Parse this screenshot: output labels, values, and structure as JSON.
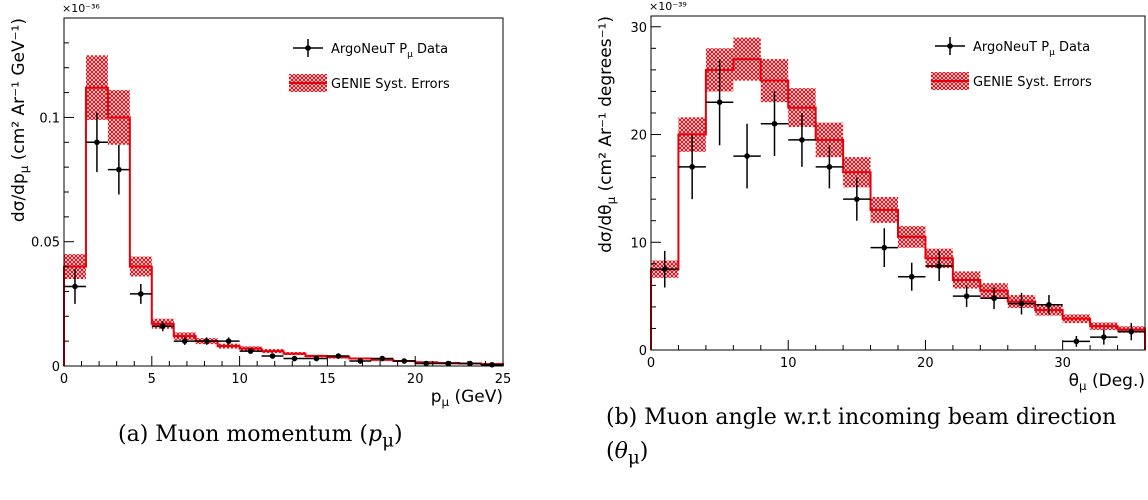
{
  "chart_data": [
    {
      "type": "histogram",
      "panel": "a",
      "xlabel": "p",
      "xlabel_sub": "μ",
      "xlabel_unit": " (GeV)",
      "ylabel": "dσ/dp",
      "ylabel_sub": "μ",
      "ylabel_unit": " (cm² Ar⁻¹ GeV⁻¹)",
      "y_multiplier": "×10⁻³⁶",
      "xlim": [
        0,
        25
      ],
      "ylim": [
        0,
        0.14
      ],
      "xticks": [
        0,
        5,
        10,
        15,
        20,
        25
      ],
      "yticks": [
        0,
        0.05,
        0.1
      ],
      "ytick_labels": [
        "0",
        "0.05",
        "0.1"
      ],
      "legend_position": "top-right",
      "legend": {
        "data_label": "ArgoNeuT P",
        "data_label_sub": "μ",
        "data_label_tail": " Data",
        "mc_label": "GENIE Syst. Errors"
      },
      "bin_edges": [
        0,
        1.25,
        2.5,
        3.75,
        5,
        6.25,
        7.5,
        8.75,
        10,
        11.25,
        12.5,
        13.75,
        15,
        16.25,
        17.5,
        18.75,
        20,
        21.25,
        22.5,
        23.75,
        25
      ],
      "mc_values": [
        0.04,
        0.112,
        0.1,
        0.04,
        0.017,
        0.012,
        0.01,
        0.008,
        0.007,
        0.006,
        0.005,
        0.004,
        0.0035,
        0.003,
        0.0025,
        0.002,
        0.0015,
        0.0012,
        0.001,
        0.0008
      ],
      "mc_errors": [
        0.005,
        0.013,
        0.011,
        0.004,
        0.002,
        0.0015,
        0.0012,
        0.001,
        0.0009,
        0.0008,
        0.0006,
        0.0005,
        0.0005,
        0.0004,
        0.0004,
        0.0003,
        0.0003,
        0.0002,
        0.0002,
        0.0002
      ],
      "data_x": [
        0.625,
        1.875,
        3.125,
        4.375,
        5.625,
        6.875,
        8.125,
        9.375,
        10.625,
        11.875,
        13.125,
        14.375,
        15.625,
        16.875,
        18.125,
        19.375,
        20.625,
        21.875,
        23.125,
        24.375
      ],
      "data_y": [
        0.032,
        0.09,
        0.079,
        0.029,
        0.016,
        0.01,
        0.01,
        0.01,
        0.006,
        0.004,
        0.003,
        0.003,
        0.004,
        0.002,
        0.003,
        0.002,
        0.001,
        0.001,
        0.001,
        0.0005
      ],
      "data_yerr": [
        0.007,
        0.012,
        0.01,
        0.004,
        0.002,
        0.0015,
        0.0015,
        0.0015,
        0.001,
        0.001,
        0.001,
        0.001,
        0.001,
        0.0008,
        0.0008,
        0.0007,
        0.0006,
        0.0006,
        0.0005,
        0.0004
      ],
      "data_xerr": 0.625,
      "colors": {
        "mc": "#e8000b",
        "data": "#000000"
      }
    },
    {
      "type": "histogram",
      "panel": "b",
      "xlabel": "θ",
      "xlabel_sub": "μ",
      "xlabel_unit": " (Deg.)",
      "ylabel": "dσ/dθ",
      "ylabel_sub": "μ",
      "ylabel_unit": " (cm² Ar⁻¹ degrees⁻¹)",
      "y_multiplier": "×10⁻³⁹",
      "xlim": [
        0,
        36
      ],
      "ylim": [
        0,
        31
      ],
      "xticks": [
        0,
        10,
        20,
        30
      ],
      "yticks": [
        0,
        10,
        20,
        30
      ],
      "ytick_labels": [
        "0",
        "10",
        "20",
        "30"
      ],
      "legend_position": "top-right",
      "legend": {
        "data_label": "ArgoNeuT P",
        "data_label_sub": "μ",
        "data_label_tail": " Data",
        "mc_label": "GENIE Syst. Errors"
      },
      "bin_edges": [
        0,
        2,
        4,
        6,
        8,
        10,
        12,
        14,
        16,
        18,
        20,
        22,
        24,
        26,
        28,
        30,
        32,
        34,
        36
      ],
      "mc_values": [
        7.5,
        20,
        26,
        27,
        25,
        22.5,
        19.5,
        16.5,
        13,
        10.5,
        8.5,
        6.5,
        5.5,
        4.5,
        3.7,
        2.9,
        2.2,
        1.9
      ],
      "mc_errors": [
        0.8,
        1.6,
        2.0,
        2.0,
        2.0,
        1.8,
        1.6,
        1.4,
        1.2,
        1.0,
        0.9,
        0.8,
        0.7,
        0.6,
        0.5,
        0.4,
        0.35,
        0.3
      ],
      "data_x": [
        1,
        3,
        5,
        7,
        9,
        11,
        13,
        15,
        17,
        19,
        21,
        23,
        25,
        27,
        29,
        31,
        33,
        35
      ],
      "data_y": [
        7.5,
        17,
        23,
        18,
        21,
        19.5,
        17,
        14,
        9.5,
        6.8,
        7.8,
        5,
        4.8,
        4.3,
        4.2,
        0.8,
        1.2,
        1.7
      ],
      "data_yerr": [
        1.7,
        3,
        4,
        3,
        3,
        2.5,
        2,
        2,
        1.8,
        1.3,
        1.4,
        1,
        1,
        1,
        0.9,
        0.5,
        0.7,
        0.8
      ],
      "data_xerr": 1,
      "colors": {
        "mc": "#e8000b",
        "data": "#000000"
      }
    }
  ],
  "captions": {
    "a": "(a) Muon momentum (",
    "a_math": "p",
    "a_math_sub": "μ",
    "a_tail": ")",
    "b_line1": "(b) Muon angle w.r.t incoming beam direction",
    "b_line2_pre": "(",
    "b_math": "θ",
    "b_math_sub": "μ",
    "b_line2_tail": ")"
  }
}
